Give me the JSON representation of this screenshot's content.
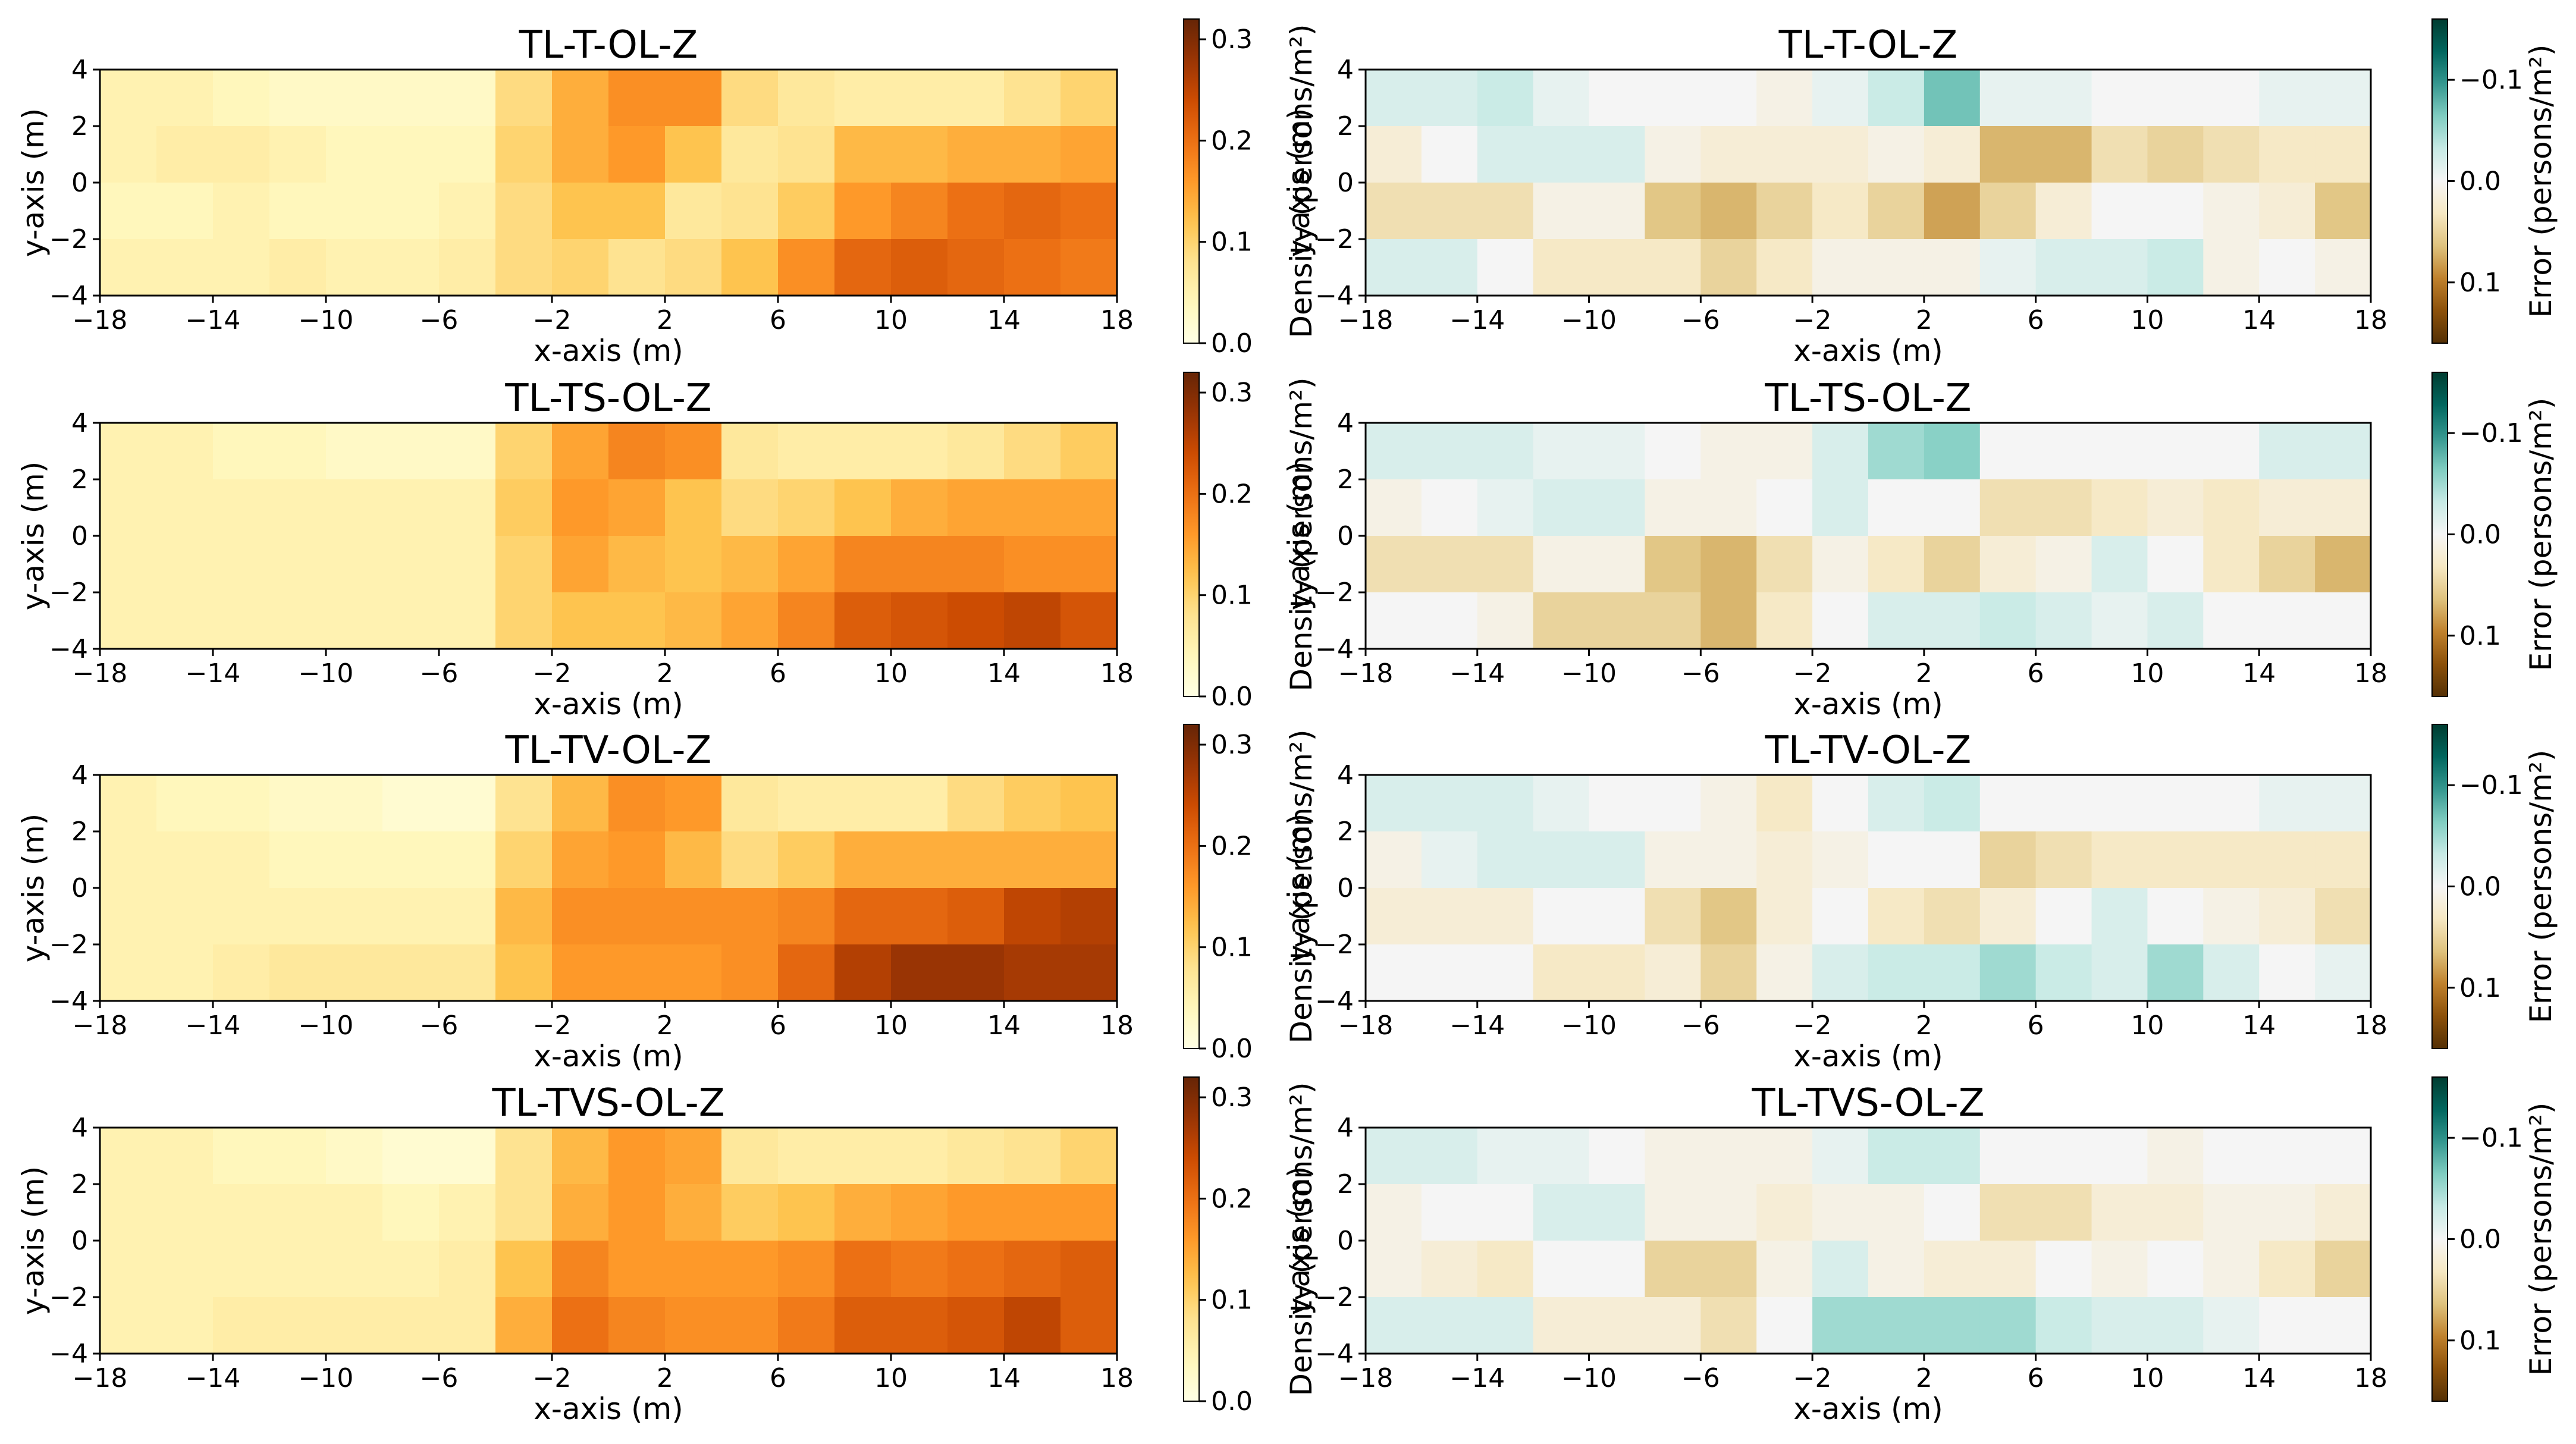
{
  "figure": {
    "ticks_x": [
      -18,
      -14,
      -10,
      -6,
      -2,
      2,
      6,
      10,
      14,
      18
    ],
    "ticks_y": [
      4,
      2,
      0,
      -2,
      -4
    ]
  },
  "chart_data": [
    {
      "type": "heatmap",
      "panel": "density",
      "title": "TL-T-OL-Z",
      "xlabel": "x-axis (m)",
      "ylabel": "y-axis (m)",
      "xlim": [
        -18,
        18
      ],
      "ylim": [
        -4,
        4
      ],
      "colorbar": {
        "label": "Density (persons/m²)",
        "colormap": "YlOrBr",
        "range": [
          0.0,
          0.32
        ],
        "ticks": [
          0.0,
          0.1,
          0.2,
          0.3
        ],
        "tick_labels": [
          "0.0",
          "0.1",
          "0.2",
          "0.3"
        ]
      },
      "rows_top_to_bottom": [
        [
          0.05,
          0.05,
          0.04,
          0.03,
          0.03,
          0.03,
          0.03,
          0.09,
          0.14,
          0.17,
          0.17,
          0.09,
          0.07,
          0.06,
          0.06,
          0.06,
          0.08,
          0.1
        ],
        [
          0.05,
          0.06,
          0.06,
          0.05,
          0.04,
          0.04,
          0.04,
          0.1,
          0.14,
          0.16,
          0.12,
          0.07,
          0.08,
          0.13,
          0.13,
          0.14,
          0.14,
          0.15
        ],
        [
          0.04,
          0.04,
          0.05,
          0.04,
          0.04,
          0.04,
          0.05,
          0.09,
          0.12,
          0.12,
          0.07,
          0.08,
          0.11,
          0.16,
          0.18,
          0.2,
          0.21,
          0.2
        ],
        [
          0.05,
          0.05,
          0.05,
          0.06,
          0.05,
          0.05,
          0.06,
          0.09,
          0.1,
          0.08,
          0.09,
          0.12,
          0.17,
          0.21,
          0.22,
          0.21,
          0.2,
          0.19
        ]
      ]
    },
    {
      "type": "heatmap",
      "panel": "error",
      "title": "TL-T-OL-Z",
      "xlabel": "x-axis (m)",
      "ylabel": "y-axis (m)",
      "xlim": [
        -18,
        18
      ],
      "ylim": [
        -4,
        4
      ],
      "colorbar": {
        "label": "Error (persons/m²)",
        "colormap": "BrBG",
        "range": [
          0.16,
          -0.16
        ],
        "ticks": [
          -0.1,
          0.0,
          0.1
        ],
        "tick_labels": [
          "−0.1",
          "0.0",
          "0.1"
        ]
      },
      "rows_top_to_bottom": [
        [
          -0.02,
          -0.02,
          -0.03,
          -0.01,
          0.0,
          0.0,
          0.0,
          0.01,
          -0.01,
          -0.03,
          -0.07,
          -0.01,
          -0.01,
          0.0,
          0.0,
          0.0,
          -0.01,
          -0.01
        ],
        [
          0.02,
          0.0,
          -0.02,
          -0.02,
          -0.02,
          0.01,
          0.02,
          0.02,
          0.02,
          0.01,
          0.02,
          0.07,
          0.07,
          0.04,
          0.05,
          0.04,
          0.03,
          0.03
        ],
        [
          0.04,
          0.04,
          0.04,
          0.01,
          0.01,
          0.06,
          0.07,
          0.05,
          0.03,
          0.05,
          0.08,
          0.05,
          0.02,
          0.0,
          0.0,
          0.01,
          0.02,
          0.06
        ],
        [
          -0.02,
          -0.02,
          0.0,
          0.03,
          0.03,
          0.03,
          0.05,
          0.03,
          0.01,
          0.01,
          0.01,
          -0.01,
          -0.02,
          -0.02,
          -0.03,
          0.01,
          0.0,
          0.01
        ]
      ]
    },
    {
      "type": "heatmap",
      "panel": "density",
      "title": "TL-TS-OL-Z",
      "xlabel": "x-axis (m)",
      "ylabel": "y-axis (m)",
      "xlim": [
        -18,
        18
      ],
      "ylim": [
        -4,
        4
      ],
      "colorbar": {
        "label": "Density (persons/m²)",
        "colormap": "YlOrBr",
        "range": [
          0.0,
          0.32
        ],
        "ticks": [
          0.0,
          0.1,
          0.2,
          0.3
        ],
        "tick_labels": [
          "0.0",
          "0.1",
          "0.2",
          "0.3"
        ]
      },
      "rows_top_to_bottom": [
        [
          0.05,
          0.05,
          0.04,
          0.04,
          0.03,
          0.03,
          0.03,
          0.1,
          0.15,
          0.18,
          0.17,
          0.07,
          0.06,
          0.06,
          0.06,
          0.07,
          0.09,
          0.11
        ],
        [
          0.05,
          0.05,
          0.05,
          0.05,
          0.05,
          0.05,
          0.05,
          0.11,
          0.16,
          0.15,
          0.12,
          0.09,
          0.1,
          0.12,
          0.14,
          0.15,
          0.15,
          0.15
        ],
        [
          0.05,
          0.05,
          0.05,
          0.05,
          0.05,
          0.05,
          0.05,
          0.1,
          0.15,
          0.13,
          0.12,
          0.13,
          0.15,
          0.18,
          0.18,
          0.18,
          0.17,
          0.17
        ],
        [
          0.05,
          0.05,
          0.05,
          0.05,
          0.05,
          0.05,
          0.05,
          0.1,
          0.12,
          0.12,
          0.13,
          0.15,
          0.18,
          0.22,
          0.23,
          0.24,
          0.25,
          0.23
        ]
      ]
    },
    {
      "type": "heatmap",
      "panel": "error",
      "title": "TL-TS-OL-Z",
      "xlabel": "x-axis (m)",
      "ylabel": "y-axis (m)",
      "xlim": [
        -18,
        18
      ],
      "ylim": [
        -4,
        4
      ],
      "colorbar": {
        "label": "Error (persons/m²)",
        "colormap": "BrBG",
        "range": [
          0.16,
          -0.16
        ],
        "ticks": [
          -0.1,
          0.0,
          0.1
        ],
        "tick_labels": [
          "−0.1",
          "0.0",
          "0.1"
        ]
      },
      "rows_top_to_bottom": [
        [
          -0.02,
          -0.02,
          -0.02,
          -0.01,
          -0.01,
          0.0,
          0.01,
          0.01,
          -0.02,
          -0.05,
          -0.06,
          0.0,
          0.0,
          0.0,
          0.0,
          0.0,
          -0.02,
          -0.02
        ],
        [
          0.01,
          0.0,
          -0.01,
          -0.02,
          -0.02,
          0.01,
          0.01,
          0.0,
          -0.02,
          0.0,
          0.0,
          0.04,
          0.04,
          0.03,
          0.02,
          0.03,
          0.02,
          0.02
        ],
        [
          0.04,
          0.04,
          0.04,
          0.01,
          0.01,
          0.06,
          0.07,
          0.04,
          0.01,
          0.03,
          0.05,
          0.02,
          0.01,
          -0.02,
          0.0,
          0.03,
          0.05,
          0.07
        ],
        [
          0.0,
          0.0,
          0.01,
          0.05,
          0.05,
          0.05,
          0.07,
          0.03,
          0.0,
          -0.02,
          -0.02,
          -0.03,
          -0.02,
          -0.01,
          -0.02,
          0.0,
          0.0,
          0.0
        ]
      ]
    },
    {
      "type": "heatmap",
      "panel": "density",
      "title": "TL-TV-OL-Z",
      "xlabel": "x-axis (m)",
      "ylabel": "y-axis (m)",
      "xlim": [
        -18,
        18
      ],
      "ylim": [
        -4,
        4
      ],
      "colorbar": {
        "label": "Density (persons/m²)",
        "colormap": "YlOrBr",
        "range": [
          0.0,
          0.32
        ],
        "ticks": [
          0.0,
          0.1,
          0.2,
          0.3
        ],
        "tick_labels": [
          "0.0",
          "0.1",
          "0.2",
          "0.3"
        ]
      },
      "rows_top_to_bottom": [
        [
          0.05,
          0.04,
          0.04,
          0.03,
          0.03,
          0.02,
          0.02,
          0.08,
          0.13,
          0.17,
          0.16,
          0.07,
          0.06,
          0.06,
          0.06,
          0.09,
          0.11,
          0.12
        ],
        [
          0.05,
          0.05,
          0.05,
          0.04,
          0.04,
          0.04,
          0.04,
          0.1,
          0.15,
          0.16,
          0.13,
          0.09,
          0.11,
          0.14,
          0.14,
          0.14,
          0.14,
          0.14
        ],
        [
          0.05,
          0.05,
          0.05,
          0.05,
          0.05,
          0.05,
          0.05,
          0.13,
          0.17,
          0.17,
          0.17,
          0.17,
          0.18,
          0.21,
          0.21,
          0.22,
          0.25,
          0.26
        ],
        [
          0.05,
          0.05,
          0.06,
          0.07,
          0.07,
          0.07,
          0.07,
          0.12,
          0.16,
          0.16,
          0.16,
          0.17,
          0.21,
          0.26,
          0.28,
          0.28,
          0.27,
          0.27
        ]
      ]
    },
    {
      "type": "heatmap",
      "panel": "error",
      "title": "TL-TV-OL-Z",
      "xlabel": "x-axis (m)",
      "ylabel": "y-axis (m)",
      "xlim": [
        -18,
        18
      ],
      "ylim": [
        -4,
        4
      ],
      "colorbar": {
        "label": "Error (persons/m²)",
        "colormap": "BrBG",
        "range": [
          0.16,
          -0.16
        ],
        "ticks": [
          -0.1,
          0.0,
          0.1
        ],
        "tick_labels": [
          "−0.1",
          "0.0",
          "0.1"
        ]
      },
      "rows_top_to_bottom": [
        [
          -0.02,
          -0.02,
          -0.02,
          -0.01,
          0.0,
          0.0,
          0.01,
          0.03,
          0.0,
          -0.02,
          -0.03,
          0.0,
          0.0,
          0.0,
          0.0,
          0.0,
          -0.01,
          -0.01
        ],
        [
          0.01,
          -0.01,
          -0.02,
          -0.02,
          -0.02,
          0.01,
          0.01,
          0.02,
          0.01,
          0.0,
          0.0,
          0.05,
          0.04,
          0.03,
          0.03,
          0.03,
          0.03,
          0.03
        ],
        [
          0.02,
          0.02,
          0.02,
          0.0,
          0.0,
          0.04,
          0.06,
          0.02,
          0.0,
          0.03,
          0.04,
          0.02,
          0.0,
          -0.02,
          0.0,
          0.01,
          0.02,
          0.04
        ],
        [
          0.0,
          0.0,
          0.0,
          0.03,
          0.03,
          0.02,
          0.05,
          0.01,
          -0.02,
          -0.03,
          -0.03,
          -0.05,
          -0.03,
          -0.02,
          -0.05,
          -0.02,
          0.0,
          -0.01
        ]
      ]
    },
    {
      "type": "heatmap",
      "panel": "density",
      "title": "TL-TVS-OL-Z",
      "xlabel": "x-axis (m)",
      "ylabel": "y-axis (m)",
      "xlim": [
        -18,
        18
      ],
      "ylim": [
        -4,
        4
      ],
      "colorbar": {
        "label": "Density (persons/m²)",
        "colormap": "YlOrBr",
        "range": [
          0.0,
          0.32
        ],
        "ticks": [
          0.0,
          0.1,
          0.2,
          0.3
        ],
        "tick_labels": [
          "0.0",
          "0.1",
          "0.2",
          "0.3"
        ]
      },
      "rows_top_to_bottom": [
        [
          0.05,
          0.05,
          0.04,
          0.04,
          0.03,
          0.02,
          0.02,
          0.08,
          0.13,
          0.16,
          0.15,
          0.07,
          0.06,
          0.06,
          0.06,
          0.07,
          0.08,
          0.1
        ],
        [
          0.05,
          0.05,
          0.05,
          0.05,
          0.05,
          0.04,
          0.05,
          0.08,
          0.14,
          0.16,
          0.14,
          0.11,
          0.12,
          0.14,
          0.15,
          0.16,
          0.16,
          0.16
        ],
        [
          0.05,
          0.05,
          0.05,
          0.05,
          0.05,
          0.05,
          0.06,
          0.12,
          0.18,
          0.16,
          0.16,
          0.16,
          0.17,
          0.2,
          0.19,
          0.2,
          0.21,
          0.22
        ],
        [
          0.05,
          0.05,
          0.06,
          0.06,
          0.06,
          0.06,
          0.06,
          0.14,
          0.2,
          0.18,
          0.17,
          0.17,
          0.19,
          0.22,
          0.22,
          0.23,
          0.25,
          0.22
        ]
      ]
    },
    {
      "type": "heatmap",
      "panel": "error",
      "title": "TL-TVS-OL-Z",
      "xlabel": "x-axis (m)",
      "ylabel": "y-axis (m)",
      "xlim": [
        -18,
        18
      ],
      "ylim": [
        -4,
        4
      ],
      "colorbar": {
        "label": "Error (persons/m²)",
        "colormap": "BrBG",
        "range": [
          0.16,
          -0.16
        ],
        "ticks": [
          -0.1,
          0.0,
          0.1
        ],
        "tick_labels": [
          "−0.1",
          "0.0",
          "0.1"
        ]
      },
      "rows_top_to_bottom": [
        [
          -0.02,
          -0.02,
          -0.01,
          -0.01,
          0.0,
          0.01,
          0.01,
          0.01,
          -0.01,
          -0.03,
          -0.03,
          0.0,
          0.0,
          0.0,
          0.01,
          0.0,
          0.0,
          0.0
        ],
        [
          0.01,
          0.0,
          0.0,
          -0.02,
          -0.02,
          0.01,
          0.01,
          0.02,
          0.01,
          0.01,
          0.0,
          0.04,
          0.04,
          0.02,
          0.02,
          0.01,
          0.01,
          0.02
        ],
        [
          0.01,
          0.02,
          0.03,
          0.0,
          0.0,
          0.05,
          0.05,
          0.01,
          -0.02,
          0.01,
          0.02,
          0.02,
          0.0,
          0.01,
          0.0,
          0.01,
          0.03,
          0.05
        ],
        [
          -0.02,
          -0.02,
          -0.02,
          0.02,
          0.02,
          0.02,
          0.04,
          0.0,
          -0.05,
          -0.05,
          -0.05,
          -0.05,
          -0.03,
          -0.02,
          -0.02,
          -0.01,
          0.0,
          0.0
        ]
      ]
    }
  ]
}
